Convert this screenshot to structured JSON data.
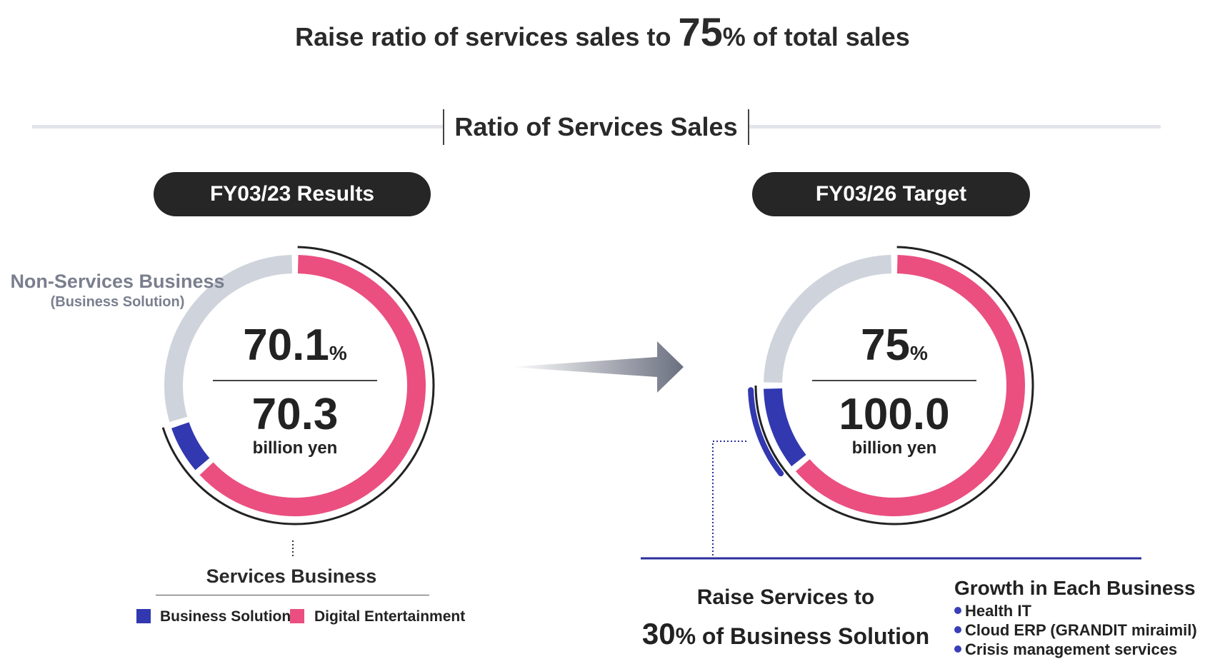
{
  "headline": {
    "prefix": "Raise ratio of services sales to",
    "value": "75",
    "suffix": "% of total sales"
  },
  "section_title": "Ratio of Services Sales",
  "colors": {
    "business_solution": "#3238b0",
    "digital_entertainment": "#ea4f80",
    "non_services": "#cfd3dc",
    "dark": "#262626",
    "rule_blue": "#2b2f9e"
  },
  "chart_data": [
    {
      "type": "pie",
      "title": "FY03/23 Results",
      "center_percent": "70.1",
      "center_percent_unit": "%",
      "center_value": "70.3",
      "center_unit": "billion yen",
      "slices": [
        {
          "name": "Digital Entertainment",
          "value": 63.4
        },
        {
          "name": "Business Solution",
          "value": 6.7
        },
        {
          "name": "Non-Services Business",
          "value": 29.9
        }
      ]
    },
    {
      "type": "pie",
      "title": "FY03/26 Target",
      "center_percent": "75",
      "center_percent_unit": "%",
      "center_value": "100.0",
      "center_unit": "billion yen",
      "slices": [
        {
          "name": "Digital Entertainment",
          "value": 64
        },
        {
          "name": "Business Solution",
          "value": 11
        },
        {
          "name": "Non-Services Business",
          "value": 25
        }
      ]
    }
  ],
  "labels": {
    "non_services": "Non-Services Business",
    "non_services_sub": "(Business Solution)",
    "services": "Services Business"
  },
  "legend": [
    {
      "label": "Business Solution"
    },
    {
      "label": "Digital Entertainment"
    }
  ],
  "raise_services": {
    "line1": "Raise Services to",
    "value": "30",
    "suffix": "% of Business Solution"
  },
  "growth": {
    "heading": "Growth in Each Business",
    "items": [
      "Health IT",
      "Cloud ERP (GRANDIT miraimil)",
      "Crisis management services"
    ]
  }
}
